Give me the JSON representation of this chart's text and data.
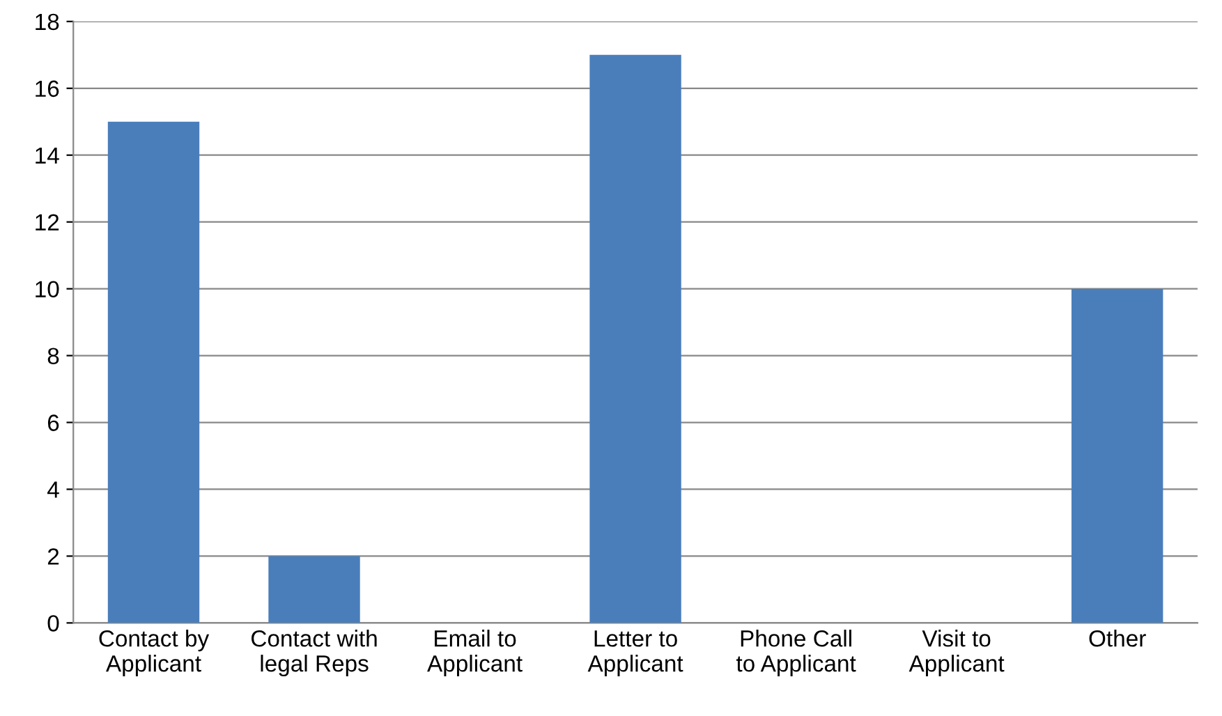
{
  "chart_data": {
    "type": "bar",
    "categories": [
      "Contact by Applicant",
      "Contact with legal Reps",
      "Email to Applicant",
      "Letter to Applicant",
      "Phone Call to Applicant",
      "Visit to Applicant",
      "Other"
    ],
    "values": [
      15,
      2,
      0,
      17,
      0,
      0,
      10
    ],
    "color": "#4a7ebb",
    "ylim": [
      0,
      18
    ],
    "yticks": [
      0,
      2,
      4,
      6,
      8,
      10,
      12,
      14,
      16,
      18
    ],
    "grid": "y",
    "legend": false
  }
}
